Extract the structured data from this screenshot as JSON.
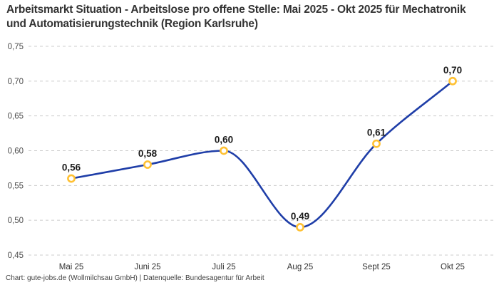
{
  "chart_data": {
    "type": "line",
    "title": "Arbeitsmarkt Situation - Arbeitslose pro offene Stelle: Mai 2025 - Okt 2025 für Mechatronik und Automatisierungstechnik (Region Karlsruhe)",
    "categories": [
      "Mai 25",
      "Juni 25",
      "Juli 25",
      "Aug 25",
      "Sept 25",
      "Okt 25"
    ],
    "values": [
      0.56,
      0.58,
      0.6,
      0.49,
      0.61,
      0.7
    ],
    "value_labels": [
      "0,56",
      "0,58",
      "0,60",
      "0,49",
      "0,61",
      "0,70"
    ],
    "series_name": "Arbeitslose pro offene Stelle",
    "xlabel": "",
    "ylabel": "",
    "ylim": [
      0.45,
      0.75
    ],
    "y_ticks": [
      0.45,
      0.5,
      0.55,
      0.6,
      0.65,
      0.7,
      0.75
    ],
    "y_tick_labels": [
      "0,45",
      "0,50",
      "0,55",
      "0,60",
      "0,65",
      "0,70",
      "0,75"
    ],
    "grid": "horizontal-dashed",
    "legend_position": "none",
    "curve": "monotone-spline",
    "colors": {
      "line": "#1f3ea8",
      "marker_ring": "#ffc133",
      "marker_fill": "#ffffff",
      "grid": "#cccccc",
      "title": "#333333",
      "tick_label": "#4a4a4a",
      "x_label": "#333333",
      "value_label": "#1a1a1a",
      "footer": "#3f3f3f",
      "background": "#ffffff"
    }
  },
  "footer": {
    "text": "Chart: gute-jobs.de (Wollmilchsau GmbH) | Datenquelle: Bundesagentur für Arbeit"
  }
}
